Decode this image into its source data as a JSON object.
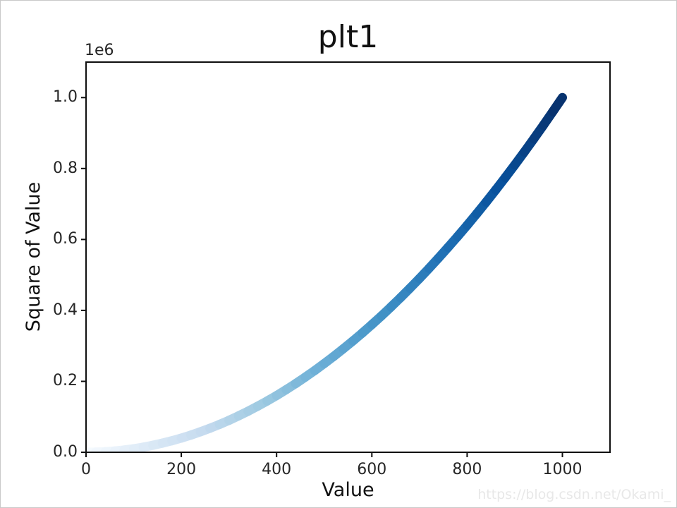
{
  "page": {
    "watermark_text": "https://blog.csdn.net/Okami_",
    "watermark_color": "#e8e8e8",
    "background": "#ffffff",
    "border_color": "#c9c9c9"
  },
  "chart_data": {
    "type": "scatter",
    "title": "plt1",
    "xlabel": "Value",
    "ylabel": "Square of Value",
    "offset_text": "1e6",
    "formula": "y = x^2",
    "xlim": [
      0,
      1100
    ],
    "ylim": [
      0,
      1100000
    ],
    "x_ticks": [
      0,
      200,
      400,
      600,
      800,
      1000
    ],
    "x_tick_labels": [
      "0",
      "200",
      "400",
      "600",
      "800",
      "1000"
    ],
    "y_ticks": [
      0,
      200000,
      400000,
      600000,
      800000,
      1000000
    ],
    "y_tick_labels": [
      "0.0",
      "0.2",
      "0.4",
      "0.6",
      "0.8",
      "1.0"
    ],
    "grid": false,
    "legend": "none",
    "colormap": "Blues",
    "colormap_stops": [
      "#f7fbff",
      "#deebf7",
      "#c6dbef",
      "#9ecae1",
      "#6baed6",
      "#4292c6",
      "#2171b5",
      "#08519c",
      "#08306b"
    ],
    "color_by": "x",
    "color_min": 0,
    "color_max": 1000,
    "marker_band_px": 13,
    "spine_color": "#0f0f0f",
    "points": [
      [
        0,
        0
      ],
      [
        20,
        400
      ],
      [
        40,
        1600
      ],
      [
        60,
        3600
      ],
      [
        80,
        6400
      ],
      [
        100,
        10000
      ],
      [
        120,
        14400
      ],
      [
        140,
        19600
      ],
      [
        160,
        25600
      ],
      [
        180,
        32400
      ],
      [
        200,
        40000
      ],
      [
        220,
        48400
      ],
      [
        240,
        57600
      ],
      [
        260,
        67600
      ],
      [
        280,
        78400
      ],
      [
        300,
        90000
      ],
      [
        320,
        102400
      ],
      [
        340,
        115600
      ],
      [
        360,
        129600
      ],
      [
        380,
        144400
      ],
      [
        400,
        160000
      ],
      [
        420,
        176400
      ],
      [
        440,
        193600
      ],
      [
        460,
        211600
      ],
      [
        480,
        230400
      ],
      [
        500,
        250000
      ],
      [
        520,
        270400
      ],
      [
        540,
        291600
      ],
      [
        560,
        313600
      ],
      [
        580,
        336400
      ],
      [
        600,
        360000
      ],
      [
        620,
        384400
      ],
      [
        640,
        409600
      ],
      [
        660,
        435600
      ],
      [
        680,
        462400
      ],
      [
        700,
        490000
      ],
      [
        720,
        518400
      ],
      [
        740,
        547600
      ],
      [
        760,
        577600
      ],
      [
        780,
        608400
      ],
      [
        800,
        640000
      ],
      [
        820,
        672400
      ],
      [
        840,
        705600
      ],
      [
        860,
        739600
      ],
      [
        880,
        774400
      ],
      [
        900,
        810000
      ],
      [
        920,
        846400
      ],
      [
        940,
        883600
      ],
      [
        960,
        921600
      ],
      [
        980,
        960400
      ],
      [
        1000,
        1000000
      ]
    ]
  }
}
